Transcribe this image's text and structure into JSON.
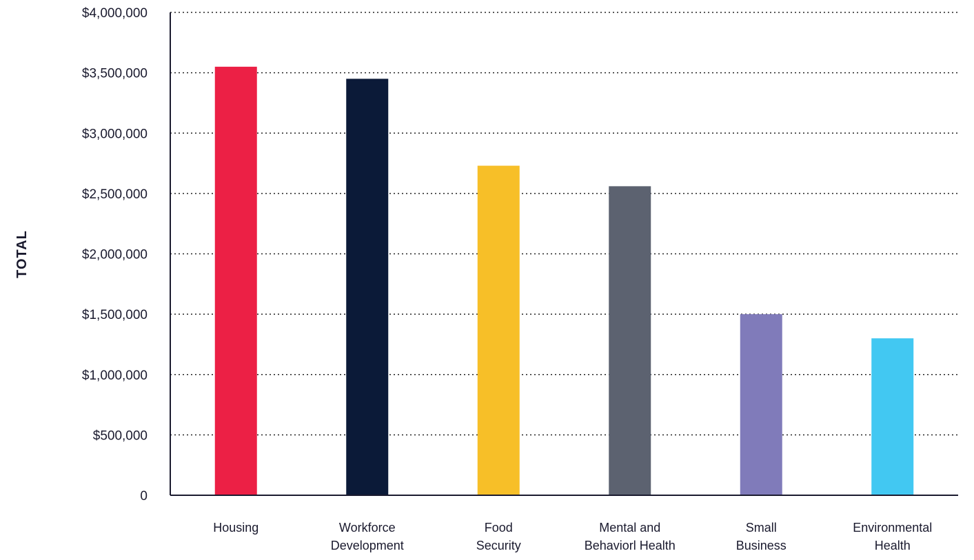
{
  "chart_data": {
    "type": "bar",
    "title": "",
    "xlabel": "",
    "ylabel": "TOTAL",
    "ylim": [
      0,
      4000000
    ],
    "grid": true,
    "legend": "none",
    "y_ticks": [
      {
        "value": 0,
        "label": "0"
      },
      {
        "value": 500000,
        "label": "$500,000"
      },
      {
        "value": 1000000,
        "label": "$1,000,000"
      },
      {
        "value": 1500000,
        "label": "$1,500,000"
      },
      {
        "value": 2000000,
        "label": "$2,000,000"
      },
      {
        "value": 2500000,
        "label": "$2,500,000"
      },
      {
        "value": 3000000,
        "label": "$3,000,000"
      },
      {
        "value": 3500000,
        "label": "$3,500,000"
      },
      {
        "value": 4000000,
        "label": "$4,000,000"
      }
    ],
    "categories": [
      [
        "Housing"
      ],
      [
        "Workforce",
        "Development"
      ],
      [
        "Food",
        "Security"
      ],
      [
        "Mental and",
        "Behaviorl Health"
      ],
      [
        "Small",
        "Business"
      ],
      [
        "Environmental",
        "Health"
      ]
    ],
    "values": [
      3550000,
      3450000,
      2730000,
      2560000,
      1500000,
      1300000
    ],
    "colors": [
      "#ec2045",
      "#0b1a38",
      "#f7bf28",
      "#5c6270",
      "#807bba",
      "#42c8f2"
    ]
  }
}
